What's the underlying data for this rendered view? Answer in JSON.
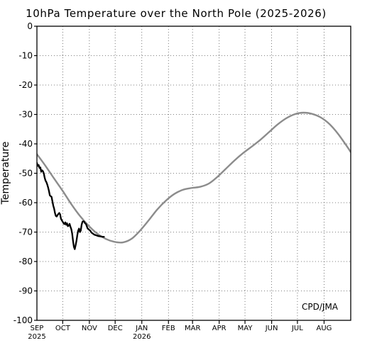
{
  "chart_data": {
    "type": "line",
    "title": "10hPa Temperature over the North Pole (2025-2026)",
    "ylabel": "Temperature",
    "xlabel": "",
    "annotation": "CPD/JMA",
    "ylim": [
      -100,
      0
    ],
    "yticks": [
      0,
      -10,
      -20,
      -30,
      -40,
      -50,
      -60,
      -70,
      -80,
      -90,
      -100
    ],
    "ytick_labels": [
      "0",
      "-10",
      "-20",
      "-30",
      "-40",
      "-50",
      "-60",
      "-70",
      "-80",
      "-90",
      "-100"
    ],
    "x_axis": {
      "start": "2025-09-01",
      "end": "2026-09-01",
      "months": [
        {
          "label": "SEP",
          "day": 0
        },
        {
          "label": "OCT",
          "day": 30
        },
        {
          "label": "NOV",
          "day": 61
        },
        {
          "label": "DEC",
          "day": 91
        },
        {
          "label": "JAN",
          "day": 122
        },
        {
          "label": "FEB",
          "day": 153
        },
        {
          "label": "MAR",
          "day": 181
        },
        {
          "label": "APR",
          "day": 212
        },
        {
          "label": "MAY",
          "day": 242
        },
        {
          "label": "JUN",
          "day": 273
        },
        {
          "label": "JUL",
          "day": 303
        },
        {
          "label": "AUG",
          "day": 334
        }
      ],
      "year_labels": [
        {
          "label": "2025",
          "day": 0
        },
        {
          "label": "2026",
          "day": 122
        }
      ]
    },
    "grid": true,
    "series": [
      {
        "color": "#8c8c8c",
        "x": [
          "2025-09-01",
          "2025-09-11",
          "2025-09-21",
          "2025-10-01",
          "2025-10-11",
          "2025-10-21",
          "2025-10-31",
          "2025-11-10",
          "2025-11-20",
          "2025-11-30",
          "2025-12-10",
          "2025-12-20",
          "2025-12-30",
          "2026-01-09",
          "2026-01-19",
          "2026-01-29",
          "2026-02-08",
          "2026-02-18",
          "2026-02-28",
          "2026-03-10",
          "2026-03-20",
          "2026-03-30",
          "2026-04-09",
          "2026-04-19",
          "2026-04-29",
          "2026-05-09",
          "2026-05-19",
          "2026-05-29",
          "2026-06-08",
          "2026-06-18",
          "2026-06-28",
          "2026-07-08",
          "2026-07-18",
          "2026-07-28",
          "2026-08-07",
          "2026-08-17",
          "2026-08-27",
          "2026-09-01"
        ],
        "y": [
          -43.5,
          -47.5,
          -51.8,
          -56.0,
          -60.5,
          -64.5,
          -67.8,
          -70.5,
          -72.3,
          -73.3,
          -73.5,
          -72.3,
          -69.5,
          -66.0,
          -62.3,
          -59.3,
          -57.0,
          -55.6,
          -55.0,
          -54.6,
          -53.5,
          -51.2,
          -48.4,
          -45.6,
          -43.1,
          -40.9,
          -38.6,
          -36.0,
          -33.4,
          -31.3,
          -29.9,
          -29.4,
          -29.8,
          -31.0,
          -33.2,
          -36.5,
          -40.6,
          -42.8
        ]
      },
      {
        "color": "#000000",
        "x": [
          "2025-09-01",
          "2025-09-02",
          "2025-09-03",
          "2025-09-04",
          "2025-09-05",
          "2025-09-06",
          "2025-09-07",
          "2025-09-08",
          "2025-09-09",
          "2025-09-10",
          "2025-09-11",
          "2025-09-12",
          "2025-09-13",
          "2025-09-14",
          "2025-09-15",
          "2025-09-16",
          "2025-09-17",
          "2025-09-18",
          "2025-09-19",
          "2025-09-20",
          "2025-09-21",
          "2025-09-22",
          "2025-09-23",
          "2025-09-24",
          "2025-09-25",
          "2025-09-26",
          "2025-09-27",
          "2025-09-28",
          "2025-09-29",
          "2025-09-30",
          "2025-10-01",
          "2025-10-02",
          "2025-10-03",
          "2025-10-04",
          "2025-10-05",
          "2025-10-06",
          "2025-10-07",
          "2025-10-08",
          "2025-10-09",
          "2025-10-10",
          "2025-10-11",
          "2025-10-12",
          "2025-10-13",
          "2025-10-14",
          "2025-10-15",
          "2025-10-16",
          "2025-10-17",
          "2025-10-18",
          "2025-10-19",
          "2025-10-20",
          "2025-10-21",
          "2025-10-22",
          "2025-10-23",
          "2025-10-24",
          "2025-10-25",
          "2025-10-26",
          "2025-10-27",
          "2025-10-28",
          "2025-10-29",
          "2025-10-30",
          "2025-10-31",
          "2025-11-01",
          "2025-11-02",
          "2025-11-03",
          "2025-11-04",
          "2025-11-05",
          "2025-11-06",
          "2025-11-07",
          "2025-11-08",
          "2025-11-09",
          "2025-11-10",
          "2025-11-11",
          "2025-11-12",
          "2025-11-13",
          "2025-11-14",
          "2025-11-15",
          "2025-11-16",
          "2025-11-17",
          "2025-11-18"
        ],
        "y": [
          -46.5,
          -47.5,
          -47.2,
          -48.2,
          -48.0,
          -49.5,
          -49.0,
          -49.3,
          -50.0,
          -51.5,
          -52.5,
          -53.0,
          -53.8,
          -54.8,
          -56.0,
          -57.5,
          -57.8,
          -58.0,
          -59.5,
          -61.0,
          -62.0,
          -63.5,
          -64.5,
          -64.7,
          -64.2,
          -63.8,
          -63.5,
          -64.0,
          -65.5,
          -66.0,
          -66.5,
          -67.0,
          -67.3,
          -66.7,
          -67.5,
          -67.0,
          -68.0,
          -67.8,
          -67.2,
          -68.2,
          -69.0,
          -70.5,
          -73.0,
          -75.0,
          -75.8,
          -74.5,
          -73.0,
          -71.0,
          -69.5,
          -68.8,
          -70.0,
          -69.5,
          -67.5,
          -66.5,
          -66.3,
          -66.5,
          -67.0,
          -67.2,
          -68.0,
          -68.8,
          -69.0,
          -69.3,
          -69.5,
          -70.0,
          -70.3,
          -70.5,
          -70.7,
          -70.9,
          -71.0,
          -71.1,
          -71.2,
          -71.3,
          -71.4,
          -71.4,
          -71.5,
          -71.5,
          -71.6,
          -71.6,
          -71.6
        ]
      }
    ]
  }
}
